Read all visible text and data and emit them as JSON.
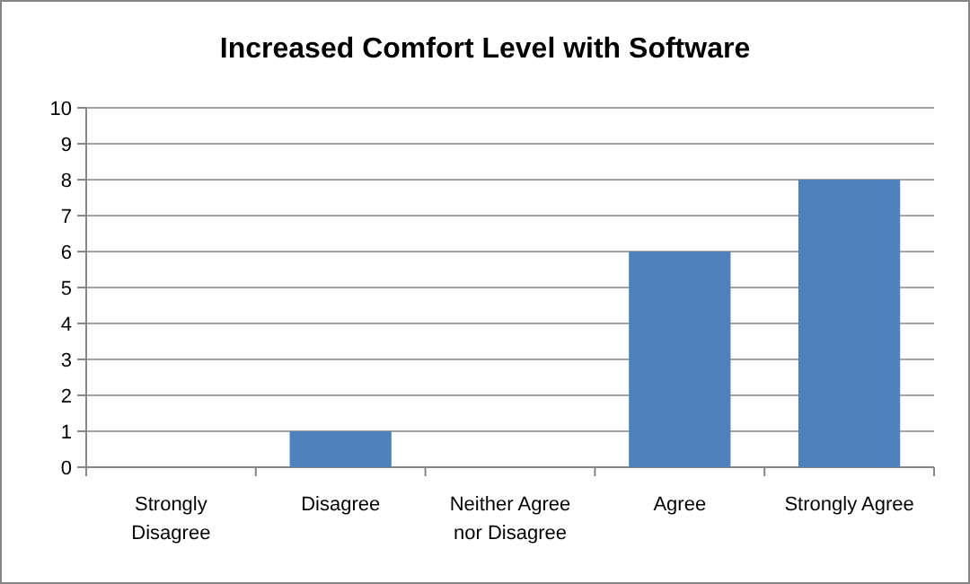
{
  "chart_data": {
    "type": "bar",
    "title": "Increased Comfort Level with Software",
    "categories": [
      "Strongly Disagree",
      "Disagree",
      "Neither Agree nor Disagree",
      "Agree",
      "Strongly Agree"
    ],
    "values": [
      0,
      1,
      0,
      6,
      8
    ],
    "color": "#4f81bd",
    "ylim": [
      0,
      10
    ],
    "yticks": [
      0,
      1,
      2,
      3,
      4,
      5,
      6,
      7,
      8,
      9,
      10
    ],
    "grid": "y"
  }
}
